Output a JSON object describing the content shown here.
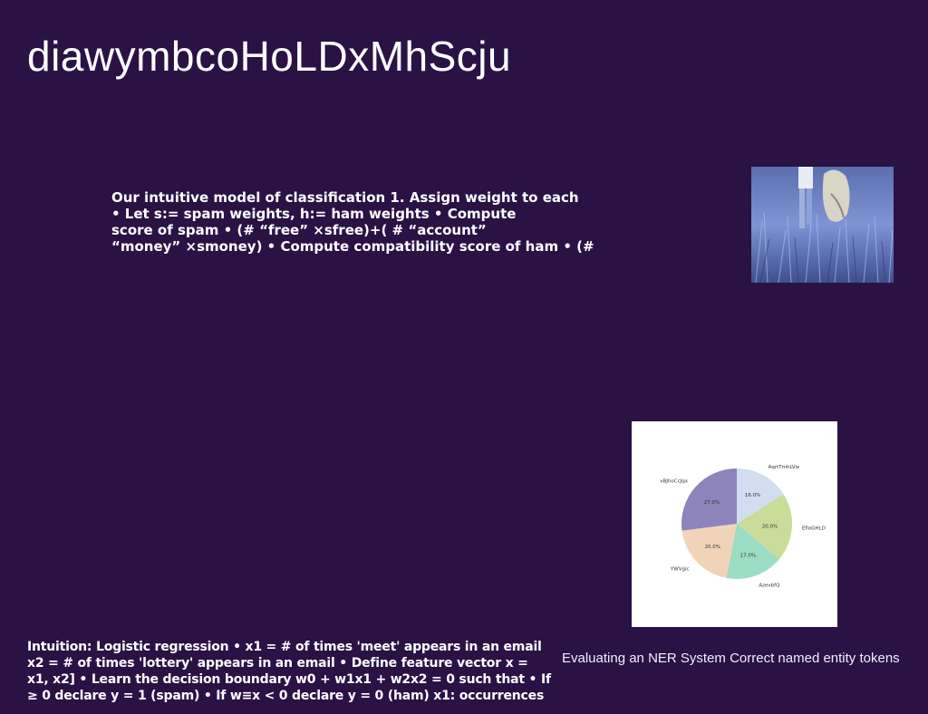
{
  "slide": {
    "title": "diawymbcoHoLDxMhScju",
    "body_lines": [
      "Our intuitive model of classification 1. Assign weight to each",
      "• Let s:= spam weights, h:= ham weights • Compute",
      "score of spam • (# “free” ×sfree)+( # “account”",
      "“money” ×smoney) • Compute compatibility score of ham • (#"
    ],
    "bottom_lines": [
      "Intuition: Logistic regression • x1 = # of times 'meet' appears in an email",
      "x2 = # of times 'lottery' appears in an email • Define feature vector x =",
      "x1, x2] • Learn the decision boundary w0 + w1x1 + w2x2 = 0 such that • If",
      "≥ 0 declare y = 1 (spam) • If w≡x < 0 declare y = 0 (ham) x1: occurrences"
    ],
    "caption": "Evaluating an NER System Correct named entity tokens",
    "photo_icon": "photo-people-in-grass"
  },
  "chart_data": {
    "type": "pie",
    "labels": [
      "AqrtTmhLVw",
      "EfloGHLD",
      "AzevbfQ",
      "YWVgic",
      "vBJhoCcJqx"
    ],
    "values": [
      16.0,
      20.0,
      17.0,
      20.0,
      27.0
    ],
    "value_labels": [
      "16.0%",
      "20.0%",
      "17.0%",
      "20.0%",
      "27.0%"
    ],
    "colors": [
      "#d2ddef",
      "#c9dc9a",
      "#9bdcc4",
      "#f1d4b8",
      "#8d84bb"
    ],
    "start_angle": 90,
    "direction": "clockwise"
  }
}
